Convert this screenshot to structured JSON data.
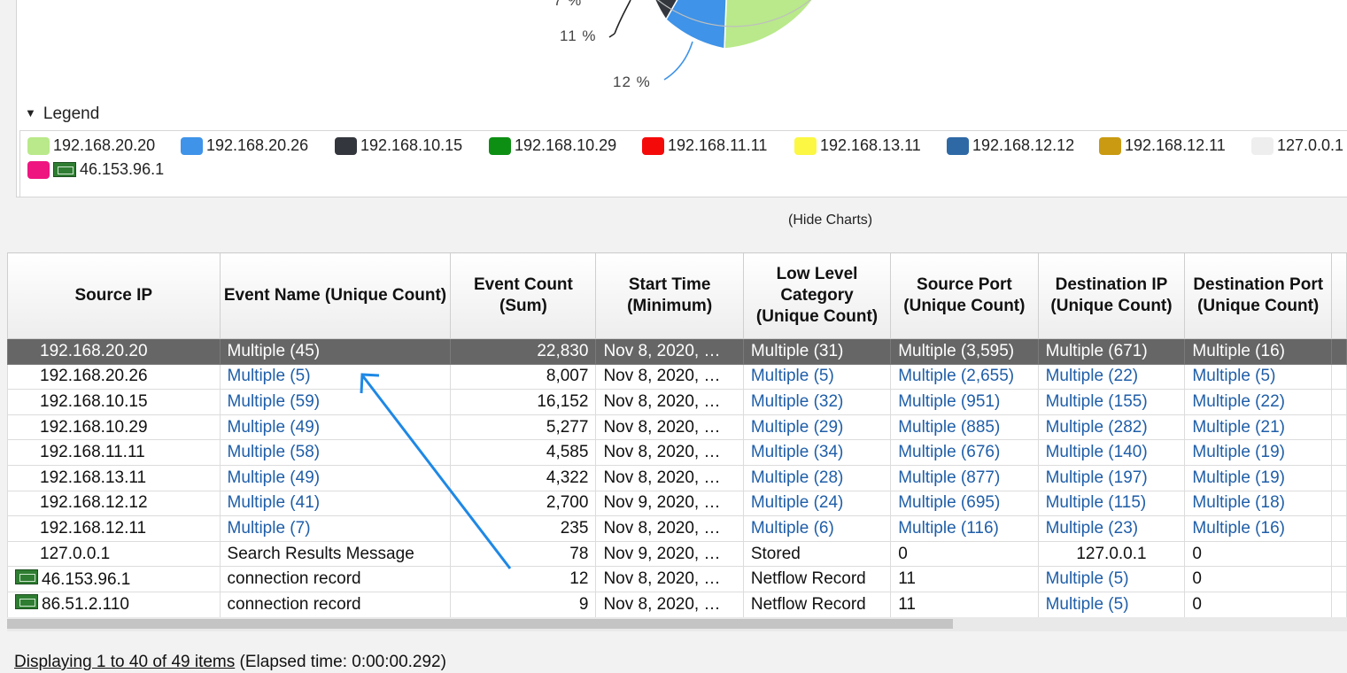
{
  "chart": {
    "visible_labels": [
      {
        "text": "7 %"
      },
      {
        "text": "11 %"
      },
      {
        "text": "12 %"
      }
    ],
    "colors": {
      "green": "#b9e98a",
      "blue": "#3f93e8",
      "dark": "#33373d"
    }
  },
  "legend": {
    "title": "Legend",
    "items": [
      {
        "label": "192.168.20.20",
        "color": "#b9e98a"
      },
      {
        "label": "192.168.20.26",
        "color": "#3f93e8"
      },
      {
        "label": "192.168.10.15",
        "color": "#33373d"
      },
      {
        "label": "192.168.10.29",
        "color": "#0d8f14"
      },
      {
        "label": "192.168.11.11",
        "color": "#f50a0a"
      },
      {
        "label": "192.168.13.11",
        "color": "#fbf743"
      },
      {
        "label": "192.168.12.12",
        "color": "#2f69a5"
      },
      {
        "label": "192.168.12.11",
        "color": "#c99a12"
      },
      {
        "label": "127.0.0.1",
        "color": "#eeeeee"
      },
      {
        "label": "46.153.96.1",
        "color": "#ef1580",
        "flag": true
      }
    ]
  },
  "hide_charts": "(Hide Charts)",
  "table": {
    "columns": [
      "Source IP",
      "Event Name (Unique Count)",
      "Event Count (Sum)",
      "Start Time (Minimum)",
      "Low Level Category (Unique Count)",
      "Source Port (Unique Count)",
      "Destination IP (Unique Count)",
      "Destination Port (Unique Count)"
    ],
    "rows": [
      {
        "ip": "192.168.20.20",
        "event": "Multiple (45)",
        "count": "22,830",
        "start": "Nov 8, 2020, …",
        "cat": "Multiple (31)",
        "sport": "Multiple (3,595)",
        "dip": "Multiple (671)",
        "dport": "Multiple (16)"
      },
      {
        "ip": "192.168.20.26",
        "event": "Multiple (5)",
        "count": "8,007",
        "start": "Nov 8, 2020, …",
        "cat": "Multiple (5)",
        "sport": "Multiple (2,655)",
        "dip": "Multiple (22)",
        "dport": "Multiple (5)"
      },
      {
        "ip": "192.168.10.15",
        "event": "Multiple (59)",
        "count": "16,152",
        "start": "Nov 8, 2020, …",
        "cat": "Multiple (32)",
        "sport": "Multiple (951)",
        "dip": "Multiple (155)",
        "dport": "Multiple (22)"
      },
      {
        "ip": "192.168.10.29",
        "event": "Multiple (49)",
        "count": "5,277",
        "start": "Nov 8, 2020, …",
        "cat": "Multiple (29)",
        "sport": "Multiple (885)",
        "dip": "Multiple (282)",
        "dport": "Multiple (21)"
      },
      {
        "ip": "192.168.11.11",
        "event": "Multiple (58)",
        "count": "4,585",
        "start": "Nov 8, 2020, …",
        "cat": "Multiple (34)",
        "sport": "Multiple (676)",
        "dip": "Multiple (140)",
        "dport": "Multiple (19)"
      },
      {
        "ip": "192.168.13.11",
        "event": "Multiple (49)",
        "count": "4,322",
        "start": "Nov 8, 2020, …",
        "cat": "Multiple (28)",
        "sport": "Multiple (877)",
        "dip": "Multiple (197)",
        "dport": "Multiple (19)"
      },
      {
        "ip": "192.168.12.12",
        "event": "Multiple (41)",
        "count": "2,700",
        "start": "Nov 9, 2020, …",
        "cat": "Multiple (24)",
        "sport": "Multiple (695)",
        "dip": "Multiple (115)",
        "dport": "Multiple (18)"
      },
      {
        "ip": "192.168.12.11",
        "event": "Multiple (7)",
        "count": "235",
        "start": "Nov 8, 2020, …",
        "cat": "Multiple (6)",
        "sport": "Multiple (116)",
        "dip": "Multiple (23)",
        "dport": "Multiple (16)"
      },
      {
        "ip": "127.0.0.1",
        "event": "Search Results Message",
        "count": "78",
        "start": "Nov 9, 2020, …",
        "cat": "Stored",
        "sport": "0",
        "dip": "127.0.0.1",
        "dport": "0"
      },
      {
        "ip": "46.153.96.1",
        "event": "connection record",
        "count": "12",
        "start": "Nov 8, 2020, …",
        "cat": "Netflow Record",
        "sport": "11",
        "dip": "Multiple (5)",
        "dport": "0"
      },
      {
        "ip": "86.51.2.110",
        "event": "connection record",
        "count": "9",
        "start": "Nov 8, 2020, …",
        "cat": "Netflow Record",
        "sport": "11",
        "dip": "Multiple (5)",
        "dport": "0"
      }
    ]
  },
  "status": {
    "displaying": "Displaying 1 to 40 of 49 items",
    "elapsed": " (Elapsed time: 0:00:00.292)"
  },
  "annotation_color": "#1e88e5"
}
